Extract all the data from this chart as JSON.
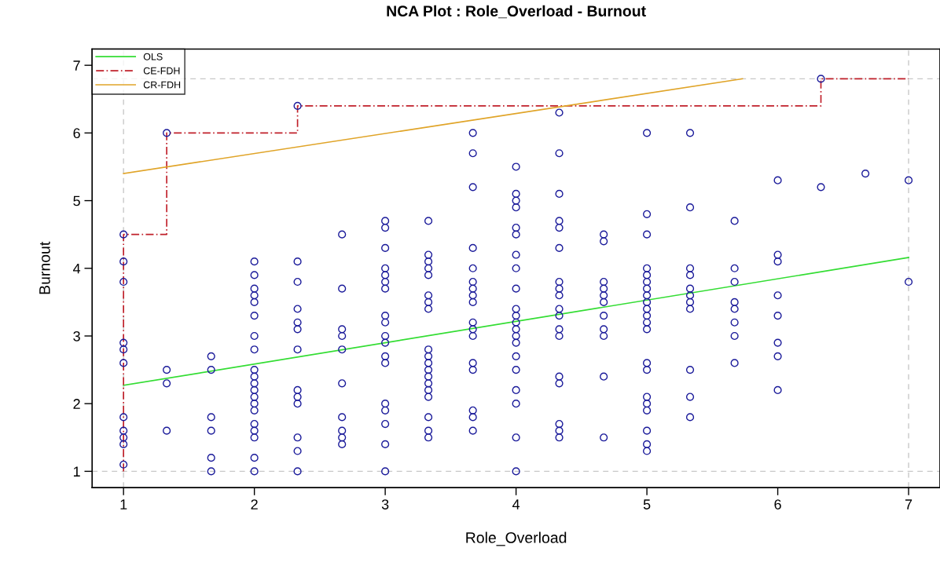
{
  "chart_data": {
    "type": "scatter",
    "title": "NCA Plot : Role_Overload - Burnout",
    "xlabel": "Role_Overload",
    "ylabel": "Burnout",
    "xlim": [
      0.76,
      7.24
    ],
    "ylim": [
      0.76,
      7.24
    ],
    "xticks": [
      1,
      2,
      3,
      4,
      5,
      6,
      7
    ],
    "yticks": [
      1,
      2,
      3,
      4,
      5,
      6,
      7
    ],
    "grid": false,
    "legend": "top left",
    "ref_lines": [
      {
        "axis": "y",
        "value": 1,
        "color": "#c8c8c8",
        "line_style": "dashed"
      },
      {
        "axis": "y",
        "value": 6.8,
        "color": "#c8c8c8",
        "line_style": "dashed"
      },
      {
        "axis": "x",
        "value": 1,
        "color": "#c8c8c8",
        "line_style": "dashed"
      },
      {
        "axis": "x",
        "value": 7,
        "color": "#c8c8c8",
        "line_style": "dashed"
      }
    ],
    "series": [
      {
        "color": "#1a1a9a",
        "marker": "circle",
        "x": [
          1,
          1,
          1,
          1,
          1,
          1,
          1,
          1,
          1,
          1,
          1,
          1.33,
          1.33,
          1.33,
          1.33,
          1.67,
          1.67,
          1.67,
          1.67,
          1.67,
          1.67,
          2,
          2,
          2,
          2,
          2,
          2,
          2,
          2,
          2,
          2,
          2,
          2,
          2,
          2,
          2,
          2,
          2,
          2,
          2,
          2,
          2.33,
          2.33,
          2.33,
          2.33,
          2.33,
          2.33,
          2.33,
          2.33,
          2.33,
          2.33,
          2.33,
          2.33,
          2.33,
          2.67,
          2.67,
          2.67,
          2.67,
          2.67,
          2.67,
          2.67,
          2.67,
          2.67,
          2.67,
          3,
          3,
          3,
          3,
          3,
          3,
          3,
          3,
          3,
          3,
          3,
          3,
          3,
          3,
          3,
          3,
          3,
          3,
          3.33,
          3.33,
          3.33,
          3.33,
          3.33,
          3.33,
          3.33,
          3.33,
          3.33,
          3.33,
          3.33,
          3.33,
          3.33,
          3.33,
          3.33,
          3.33,
          3.33,
          3.33,
          3.33,
          3.67,
          3.67,
          3.67,
          3.67,
          3.67,
          3.67,
          3.67,
          3.67,
          3.67,
          3.67,
          3.67,
          3.67,
          3.67,
          3.67,
          3.67,
          3.67,
          3.67,
          4,
          4,
          4,
          4,
          4,
          4,
          4,
          4,
          4,
          4,
          4,
          4,
          4,
          4,
          4,
          4,
          4,
          4,
          4,
          4,
          4,
          4.33,
          4.33,
          4.33,
          4.33,
          4.33,
          4.33,
          4.33,
          4.33,
          4.33,
          4.33,
          4.33,
          4.33,
          4.33,
          4.33,
          4.33,
          4.33,
          4.33,
          4.33,
          4.67,
          4.67,
          4.67,
          4.67,
          4.67,
          4.67,
          4.67,
          4.67,
          4.67,
          4.67,
          4.67,
          5,
          5,
          5,
          5,
          5,
          5,
          5,
          5,
          5,
          5,
          5,
          5,
          5,
          5,
          5,
          5,
          5,
          5,
          5,
          5,
          5,
          5.33,
          5.33,
          5.33,
          5.33,
          5.33,
          5.33,
          5.33,
          5.33,
          5.33,
          5.33,
          5.33,
          5.67,
          5.67,
          5.67,
          5.67,
          5.67,
          5.67,
          5.67,
          5.67,
          6,
          6,
          6,
          6,
          6,
          6,
          6,
          6,
          6.33,
          6.33,
          6.67,
          7,
          7
        ],
        "values": [
          4.5,
          4.1,
          3.8,
          2.9,
          2.8,
          2.6,
          1.8,
          1.6,
          1.5,
          1.4,
          1.1,
          6.0,
          2.5,
          2.3,
          1.6,
          2.7,
          2.5,
          1.8,
          1.6,
          1.2,
          1.0,
          4.1,
          3.9,
          3.7,
          3.6,
          3.5,
          3.3,
          3.0,
          2.8,
          2.5,
          2.4,
          2.3,
          2.2,
          2.1,
          2.0,
          1.9,
          1.7,
          1.6,
          1.5,
          1.2,
          1.0,
          6.4,
          4.1,
          3.8,
          3.4,
          3.2,
          3.1,
          2.8,
          2.2,
          2.1,
          2.0,
          1.5,
          1.3,
          1.0,
          4.5,
          3.7,
          3.1,
          3.0,
          2.8,
          2.3,
          1.8,
          1.6,
          1.5,
          1.4,
          4.7,
          4.6,
          4.3,
          4.0,
          3.9,
          3.8,
          3.7,
          3.3,
          3.2,
          3.0,
          2.9,
          2.7,
          2.6,
          2.0,
          1.9,
          1.7,
          1.4,
          1.0,
          4.7,
          4.2,
          4.1,
          4.0,
          3.9,
          3.6,
          3.5,
          3.4,
          2.8,
          2.7,
          2.6,
          2.5,
          2.4,
          2.3,
          2.2,
          2.1,
          1.8,
          1.6,
          1.5,
          6.0,
          5.7,
          5.2,
          4.3,
          4.0,
          3.8,
          3.7,
          3.6,
          3.5,
          3.2,
          3.1,
          3.0,
          2.6,
          2.5,
          1.9,
          1.8,
          1.6,
          5.5,
          5.1,
          5.0,
          4.9,
          4.6,
          4.5,
          4.2,
          4.0,
          3.7,
          3.4,
          3.3,
          3.2,
          3.1,
          3.0,
          2.9,
          2.7,
          2.5,
          2.2,
          2.0,
          1.5,
          1.0,
          6.3,
          5.7,
          5.1,
          4.7,
          4.6,
          4.3,
          3.8,
          3.7,
          3.6,
          3.4,
          3.3,
          3.1,
          3.0,
          2.4,
          2.3,
          1.7,
          1.6,
          1.5,
          4.5,
          4.4,
          3.8,
          3.7,
          3.6,
          3.5,
          3.3,
          3.1,
          3.0,
          2.4,
          1.5,
          6.0,
          4.8,
          4.5,
          4.0,
          3.9,
          3.8,
          3.7,
          3.6,
          3.5,
          3.4,
          3.3,
          3.2,
          3.1,
          2.6,
          2.5,
          2.1,
          2.0,
          1.9,
          1.6,
          1.4,
          1.3,
          6.0,
          4.9,
          4.0,
          3.9,
          3.7,
          3.6,
          3.5,
          3.4,
          2.5,
          2.1,
          1.8,
          4.7,
          4.0,
          3.8,
          3.5,
          3.4,
          3.2,
          3.0,
          2.6,
          5.3,
          4.2,
          4.1,
          3.6,
          3.3,
          2.9,
          2.7,
          2.2,
          6.8,
          5.2,
          5.4,
          5.3,
          3.8
        ]
      },
      {
        "type": "line",
        "name": "OLS",
        "color": "#33dd33",
        "line_style": "solid",
        "marker": "none",
        "x": [
          1,
          7
        ],
        "values": [
          2.27,
          4.16
        ]
      },
      {
        "type": "step",
        "name": "CE-FDH",
        "color": "#c0202a",
        "line_style": "dashed",
        "marker": "none",
        "x": [
          1,
          1,
          1.33,
          2.33,
          6.33,
          7
        ],
        "values": [
          1,
          4.5,
          6.0,
          6.4,
          6.8,
          6.8
        ]
      },
      {
        "type": "line",
        "name": "CR-FDH",
        "color": "#e0a428",
        "line_style": "solid",
        "marker": "none",
        "x": [
          1,
          5.73
        ],
        "values": [
          5.4,
          6.8
        ]
      }
    ]
  }
}
